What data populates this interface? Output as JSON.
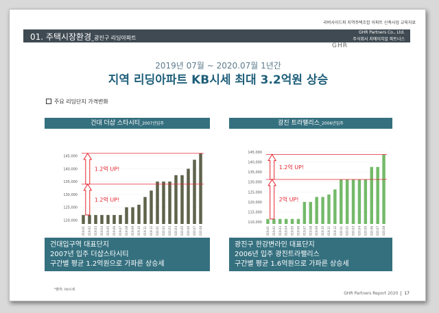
{
  "topnote": "리버사이드파 지역주택조합 아파트 신축사업 교육자료",
  "header": {
    "title_main": "01. 주택시장환경",
    "title_sub": "_광진구 리딩아파트",
    "brand_line1": "GHR Partners Co., Ltd.",
    "brand_line2": "주식회사 지에이치알 파트너스",
    "logo": "GHR"
  },
  "headline": {
    "period": "2019년 07월 ~ 2020.07월 1년간",
    "title": "지역 리딩아파트 KB시세 최대 3.2억원 상승"
  },
  "subheading": "주요 리딩단지 가격변화",
  "source": "*출처: kb시세",
  "footer": {
    "report": "GHR Partners Report 2020",
    "page": "17"
  },
  "colors": {
    "dark_bars": "#5f634b",
    "green_bars": "#74b96a",
    "teal": "#35707f",
    "arrow": "#e5232c",
    "header": "#3f4a52"
  },
  "panels": [
    {
      "title": "건대 더샵 스타시티",
      "title_small": "_2007년입주",
      "info": [
        "건대입구역 대표단지",
        "2007년 입주 더샵스타시티",
        "구간별 평균 1.2억원으로 가파른 상승세"
      ],
      "callouts": [
        "1.2억 UP!",
        "1.2억 UP!"
      ],
      "chart_data": {
        "type": "bar",
        "categories": [
          "2019.01",
          "2019.02",
          "2019.03",
          "2019.04",
          "2019.05",
          "2019.06",
          "2019.07",
          "2019.08",
          "2019.09",
          "2019.10",
          "2019.11",
          "2019.12",
          "2020.01",
          "2020.02",
          "2020.03",
          "2020.04",
          "2020.05",
          "2020.06",
          "2020.07",
          "2020.08"
        ],
        "values": [
          122000,
          122000,
          122000,
          122000,
          122000,
          122000,
          122000,
          125000,
          125000,
          126000,
          129000,
          131500,
          135000,
          135000,
          135000,
          137500,
          137500,
          140000,
          143500,
          146000
        ],
        "yticks": [
          "120,000",
          "125,000",
          "130,000",
          "135,000",
          "140,000",
          "145,000"
        ],
        "ylim": [
          118500,
          146500
        ],
        "marks": [
          122000,
          134000,
          146000
        ]
      }
    },
    {
      "title": "광진 트라팰리스",
      "title_small": "_2006년입주",
      "info": [
        "광진구 한강변라인 대표단지",
        "2006년 입주 광진트라팰리스",
        "구간별 평균 1.6억원으로 가파른 상승세"
      ],
      "callouts": [
        "1.2억 UP!",
        "2억 UP!"
      ],
      "chart_data": {
        "type": "bar",
        "categories": [
          "2019.01",
          "2019.02",
          "2019.03",
          "2019.04",
          "2019.05",
          "2019.06",
          "2019.07",
          "2019.08",
          "2019.09",
          "2019.10",
          "2019.11",
          "2019.12",
          "2020.01",
          "2020.02",
          "2020.03",
          "2020.04",
          "2020.05",
          "2020.06",
          "2020.07",
          "2020.08"
        ],
        "values": [
          111500,
          111500,
          111500,
          111500,
          111500,
          111500,
          120000,
          120000,
          122500,
          122500,
          123750,
          126250,
          131250,
          131250,
          131250,
          131250,
          131250,
          137500,
          137500,
          143750
        ],
        "yticks": [
          "110,000",
          "115,000",
          "120,000",
          "125,000",
          "130,000",
          "135,000",
          "140,000",
          "145,000"
        ],
        "ylim": [
          109000,
          147000
        ],
        "marks": [
          111500,
          131250,
          143750
        ]
      }
    }
  ]
}
